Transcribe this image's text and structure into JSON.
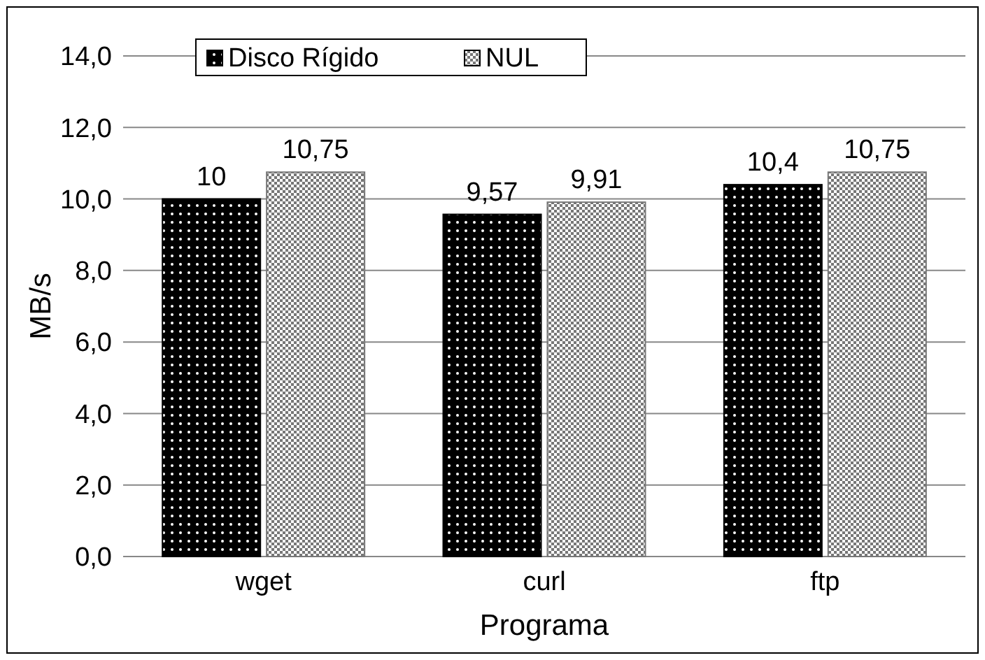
{
  "chart_data": {
    "type": "bar",
    "xlabel": "Programa",
    "ylabel": "MB/s",
    "categories": [
      "wget",
      "curl",
      "ftp"
    ],
    "series": [
      {
        "name": "Disco Rígido",
        "color": "#000000",
        "values": [
          10,
          9.57,
          10.4
        ],
        "value_labels": [
          "10",
          "9,57",
          "10,4"
        ]
      },
      {
        "name": "NUL",
        "color": "#777777",
        "values": [
          10.75,
          9.91,
          10.75
        ],
        "value_labels": [
          "10,75",
          "9,91",
          "10,75"
        ]
      }
    ],
    "ylim": [
      0,
      14
    ],
    "yticks": [
      {
        "value": 0,
        "label": "0,0"
      },
      {
        "value": 2,
        "label": "2,0"
      },
      {
        "value": 4,
        "label": "4,0"
      },
      {
        "value": 6,
        "label": "6,0"
      },
      {
        "value": 8,
        "label": "8,0"
      },
      {
        "value": 10,
        "label": "10,0"
      },
      {
        "value": 12,
        "label": "12,0"
      },
      {
        "value": 14,
        "label": "14,0"
      }
    ],
    "grid": "y",
    "legend": "top"
  }
}
